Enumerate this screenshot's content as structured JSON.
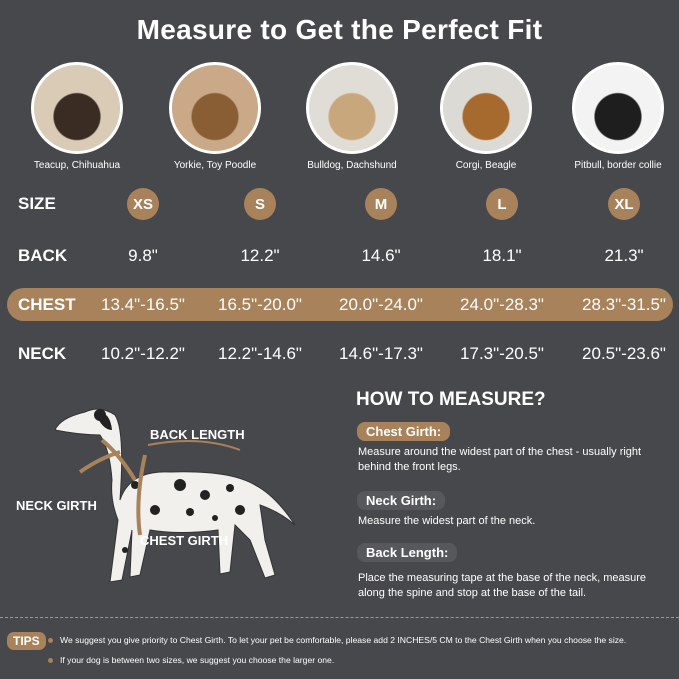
{
  "title": "Measure to Get the Perfect Fit",
  "accent_color": "#a8825a",
  "background_color": "#47484c",
  "breeds": [
    "Teacup, Chihuahua",
    "Yorkie, Toy Poodle",
    "Bulldog, Dachshund",
    "Corgi, Beagle",
    "Pitbull, border collie"
  ],
  "table": {
    "size_label": "SIZE",
    "back_label": "BACK",
    "chest_label": "CHEST",
    "neck_label": "NECK",
    "sizes": [
      "XS",
      "S",
      "M",
      "L",
      "XL"
    ],
    "back": [
      "9.8\"",
      "12.2\"",
      "14.6\"",
      "18.1\"",
      "21.3\""
    ],
    "chest": [
      "13.4\"-16.5\"",
      "16.5\"-20.0\"",
      "20.0\"-24.0\"",
      "24.0\"-28.3\"",
      "28.3\"-31.5\""
    ],
    "neck": [
      "10.2\"-12.2\"",
      "12.2\"-14.6\"",
      "14.6\"-17.3\"",
      "17.3\"-20.5\"",
      "20.5\"-23.6\""
    ]
  },
  "diagram": {
    "back_length": "BACK LENGTH",
    "neck_girth": "NECK GIRTH",
    "chest_girth": "CHEST GIRTH"
  },
  "how_to": {
    "title": "HOW TO MEASURE?",
    "items": [
      {
        "label": "Chest Girth:",
        "text": "Measure around the widest part of the chest - usually right behind the front legs."
      },
      {
        "label": "Neck Girth:",
        "text": "Measure the widest part of the neck."
      },
      {
        "label": "Back Length:",
        "text": "Place the measuring tape at the base of the neck, measure along the spine and stop at the base of the tail."
      }
    ]
  },
  "tips": {
    "label": "TIPS",
    "items": [
      "We suggest you give priority to Chest Girth. To let your pet be comfortable, please add 2 INCHES/5 CM to the Chest Girth when you choose the size.",
      "If your dog is between two sizes, we suggest you choose the larger one."
    ]
  }
}
